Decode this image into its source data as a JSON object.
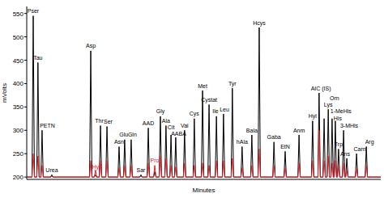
{
  "chart_data": {
    "type": "line",
    "x_label": "Minutes",
    "y_label": "mVolts",
    "xlim": [
      0,
      120
    ],
    "ylim": [
      195,
      565
    ],
    "yticks": [
      200,
      250,
      300,
      350,
      400,
      450,
      500,
      550
    ],
    "tick_labels": "y",
    "x": [
      0,
      1.8,
      2.2,
      2.6,
      3.4,
      3.8,
      4.2,
      4.8,
      5.2,
      5.6,
      8.1,
      8.5,
      8.9,
      21.3,
      21.7,
      22.1,
      22.9,
      23.3,
      23.7,
      24.6,
      25.0,
      25.4,
      26.8,
      27.2,
      27.6,
      30.9,
      31.3,
      31.7,
      32.8,
      33.2,
      33.6,
      35.0,
      35.4,
      35.8,
      38.3,
      38.7,
      39.1,
      40.8,
      41.2,
      41.6,
      43.0,
      43.4,
      43.8,
      44.9,
      45.3,
      45.7,
      46.8,
      47.2,
      47.6,
      48.5,
      48.9,
      49.3,
      50.1,
      50.5,
      50.9,
      53.1,
      53.5,
      53.9,
      56.4,
      56.8,
      57.2,
      59.2,
      59.6,
      60.0,
      61.4,
      61.8,
      62.2,
      63.9,
      64.3,
      64.7,
      66.3,
      66.7,
      67.1,
      69.3,
      69.7,
      70.1,
      72.6,
      73.0,
      73.4,
      75.9,
      76.3,
      76.7,
      78.4,
      78.8,
      79.2,
      83.4,
      83.8,
      84.2,
      87.2,
      87.6,
      88.0,
      91.9,
      92.3,
      92.7,
      96.5,
      96.9,
      97.3,
      98.7,
      99.1,
      99.5,
      100.4,
      100.8,
      101.2,
      101.8,
      102.2,
      102.6,
      103.1,
      103.5,
      103.9,
      104.2,
      104.6,
      105.0,
      105.3,
      105.7,
      106.1,
      107.0,
      107.4,
      107.8,
      108.1,
      108.5,
      108.9,
      111.4,
      111.8,
      112.2,
      114.7,
      115.1,
      115.5,
      120
    ],
    "series": [
      {
        "color": "#000000",
        "values": [
          200,
          200,
          545,
          200,
          200,
          445,
          200,
          200,
          300,
          200,
          200,
          205,
          200,
          200,
          470,
          200,
          200,
          205,
          200,
          200,
          310,
          200,
          200,
          308,
          200,
          200,
          265,
          200,
          200,
          280,
          200,
          200,
          280,
          200,
          200,
          205,
          200,
          200,
          305,
          200,
          200,
          212,
          200,
          200,
          330,
          200,
          200,
          310,
          200,
          200,
          290,
          200,
          200,
          285,
          200,
          200,
          300,
          200,
          200,
          325,
          200,
          200,
          385,
          200,
          200,
          355,
          200,
          200,
          330,
          200,
          200,
          335,
          200,
          200,
          390,
          200,
          200,
          265,
          200,
          200,
          290,
          200,
          200,
          520,
          200,
          200,
          275,
          200,
          200,
          255,
          200,
          200,
          290,
          200,
          200,
          320,
          200,
          200,
          380,
          200,
          200,
          325,
          200,
          200,
          345,
          200,
          200,
          325,
          200,
          200,
          320,
          200,
          200,
          260,
          200,
          200,
          300,
          200,
          200,
          240,
          200,
          200,
          250,
          200,
          200,
          265,
          200,
          200
        ]
      },
      {
        "color": "#e8202a",
        "values": [
          200,
          200,
          250,
          200,
          200,
          245,
          200,
          200,
          225,
          200,
          200,
          202,
          200,
          200,
          235,
          200,
          200,
          215,
          200,
          200,
          235,
          200,
          200,
          235,
          200,
          200,
          220,
          200,
          200,
          225,
          200,
          200,
          225,
          200,
          200,
          202,
          200,
          200,
          230,
          200,
          200,
          225,
          200,
          200,
          245,
          200,
          200,
          240,
          200,
          200,
          225,
          200,
          200,
          222,
          200,
          200,
          230,
          200,
          200,
          225,
          200,
          200,
          230,
          200,
          200,
          225,
          200,
          200,
          235,
          200,
          200,
          235,
          200,
          200,
          240,
          200,
          200,
          220,
          200,
          200,
          225,
          200,
          200,
          260,
          200,
          200,
          225,
          200,
          200,
          220,
          200,
          200,
          230,
          200,
          200,
          235,
          200,
          200,
          300,
          200,
          200,
          235,
          200,
          200,
          245,
          200,
          200,
          230,
          200,
          200,
          235,
          200,
          200,
          225,
          200,
          200,
          230,
          200,
          200,
          215,
          200,
          200,
          218,
          200,
          200,
          225,
          200,
          200
        ]
      }
    ],
    "annotations": [
      {
        "text": "Pser",
        "x": 2.2,
        "y": 551
      },
      {
        "text": "Tau",
        "x": 3.8,
        "y": 451
      },
      {
        "text": "PETN",
        "x": 7.0,
        "y": 306
      },
      {
        "text": "Urea",
        "x": 8.5,
        "y": 211
      },
      {
        "text": "Asp",
        "x": 21.7,
        "y": 476
      },
      {
        "text": "Hyp",
        "x": 23.9,
        "y": 218,
        "color": "#e8202a"
      },
      {
        "text": "Thr",
        "x": 24.6,
        "y": 316
      },
      {
        "text": "Ser",
        "x": 27.6,
        "y": 314
      },
      {
        "text": "Asn",
        "x": 31.3,
        "y": 271
      },
      {
        "text": "Glu",
        "x": 32.9,
        "y": 286
      },
      {
        "text": "Gln",
        "x": 35.8,
        "y": 286
      },
      {
        "text": "Sar",
        "x": 38.7,
        "y": 211
      },
      {
        "text": "AAD",
        "x": 41.2,
        "y": 311
      },
      {
        "text": "Pro",
        "x": 43.4,
        "y": 232,
        "color": "#e8202a"
      },
      {
        "text": "Gly",
        "x": 45.3,
        "y": 336
      },
      {
        "text": "Ala",
        "x": 47.2,
        "y": 316
      },
      {
        "text": "Cit",
        "x": 48.9,
        "y": 302
      },
      {
        "text": "AABA",
        "x": 51.5,
        "y": 288
      },
      {
        "text": "Val",
        "x": 53.5,
        "y": 306
      },
      {
        "text": "Cys",
        "x": 56.8,
        "y": 331
      },
      {
        "text": "Met",
        "x": 59.6,
        "y": 391
      },
      {
        "text": "Cystat",
        "x": 61.8,
        "y": 361
      },
      {
        "text": "Ile",
        "x": 64.0,
        "y": 336
      },
      {
        "text": "Leu",
        "x": 67.0,
        "y": 341
      },
      {
        "text": "Tyr",
        "x": 69.7,
        "y": 396
      },
      {
        "text": "hAla",
        "x": 73.0,
        "y": 271
      },
      {
        "text": "Bala",
        "x": 76.3,
        "y": 296
      },
      {
        "text": "Hcys",
        "x": 78.8,
        "y": 526
      },
      {
        "text": "Gaba",
        "x": 83.8,
        "y": 281
      },
      {
        "text": "EtN",
        "x": 87.6,
        "y": 261
      },
      {
        "text": "Anm",
        "x": 92.3,
        "y": 296
      },
      {
        "text": "Hyl",
        "x": 96.9,
        "y": 326
      },
      {
        "text": "AIC (IS)",
        "x": 99.7,
        "y": 385
      },
      {
        "text": "Orn",
        "x": 104.3,
        "y": 365
      },
      {
        "text": "Lys",
        "x": 102.2,
        "y": 350
      },
      {
        "text": "1-MeHis",
        "x": 106.5,
        "y": 336
      },
      {
        "text": "His",
        "x": 105.4,
        "y": 322
      },
      {
        "text": "3-MHis",
        "x": 109.3,
        "y": 306
      },
      {
        "text": "Trp",
        "x": 105.7,
        "y": 266
      },
      {
        "text": "Ans",
        "x": 107.9,
        "y": 246
      },
      {
        "text": "Carn",
        "x": 112.9,
        "y": 256
      },
      {
        "text": "Arg",
        "x": 116.2,
        "y": 271
      }
    ]
  }
}
